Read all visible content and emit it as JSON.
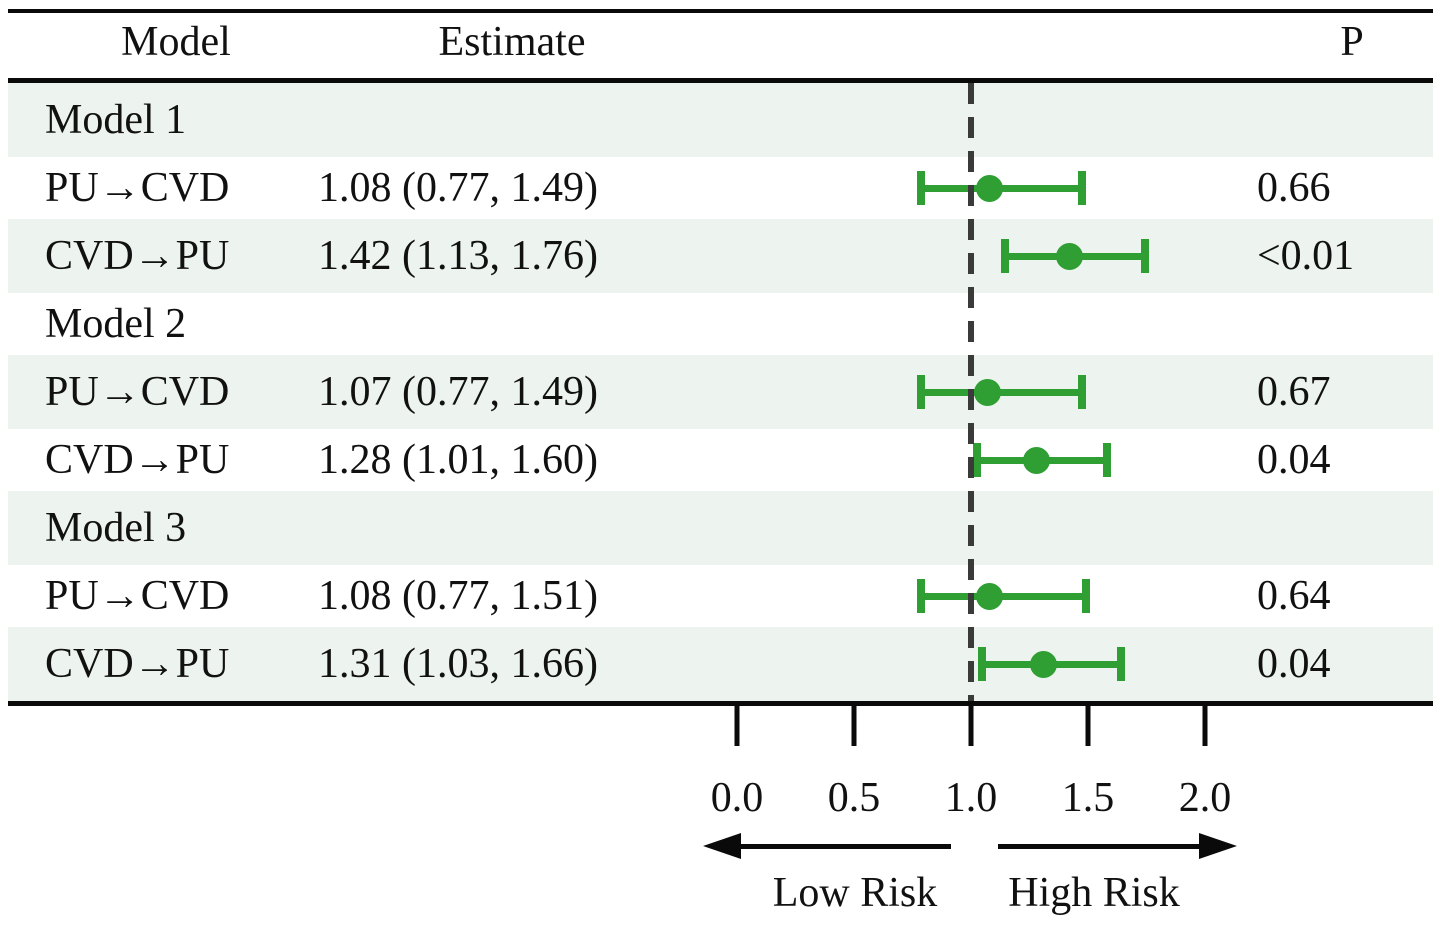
{
  "header": {
    "model": "Model",
    "estimate": "Estimate",
    "p": "P"
  },
  "rows": [
    {
      "kind": "group",
      "label": "Model 1",
      "estimate": "",
      "p": ""
    },
    {
      "kind": "data",
      "label": "PU→CVD",
      "estimate": "1.08 (0.77, 1.49)",
      "est": 1.08,
      "lo": 0.77,
      "hi": 1.49,
      "p": "0.66"
    },
    {
      "kind": "data",
      "label": "CVD→PU",
      "estimate": "1.42 (1.13, 1.76)",
      "est": 1.42,
      "lo": 1.13,
      "hi": 1.76,
      "p": "<0.01"
    },
    {
      "kind": "group",
      "label": "Model 2",
      "estimate": "",
      "p": ""
    },
    {
      "kind": "data",
      "label": "PU→CVD",
      "estimate": "1.07 (0.77, 1.49)",
      "est": 1.07,
      "lo": 0.77,
      "hi": 1.49,
      "p": "0.67"
    },
    {
      "kind": "data",
      "label": "CVD→PU",
      "estimate": "1.28 (1.01, 1.60)",
      "est": 1.28,
      "lo": 1.01,
      "hi": 1.6,
      "p": "0.04"
    },
    {
      "kind": "group",
      "label": "Model 3",
      "estimate": "",
      "p": ""
    },
    {
      "kind": "data",
      "label": "PU→CVD",
      "estimate": "1.08 (0.77, 1.51)",
      "est": 1.08,
      "lo": 0.77,
      "hi": 1.51,
      "p": "0.64"
    },
    {
      "kind": "data",
      "label": "CVD→PU",
      "estimate": "1.31 (1.03, 1.66)",
      "est": 1.31,
      "lo": 1.03,
      "hi": 1.66,
      "p": "0.04"
    }
  ],
  "axis": {
    "ticks": [
      "0.0",
      "0.5",
      "1.0",
      "1.5",
      "2.0"
    ],
    "tick_values": [
      0.0,
      0.5,
      1.0,
      1.5,
      2.0
    ],
    "reference_value": 1.0,
    "low_label": "Low Risk",
    "high_label": "High Risk"
  },
  "colors": {
    "marker_green": "#2f9e33",
    "row_shade": "#edf3ee",
    "reference_dash": "#3a3a3a",
    "rule_black": "#0a0a0a"
  },
  "chart_data": {
    "type": "scatter",
    "subtype": "forest-plot",
    "title": "",
    "xlabel": "",
    "ylabel": "",
    "xlim": [
      0.0,
      2.0
    ],
    "x_ticks": [
      0.0,
      0.5,
      1.0,
      1.5,
      2.0
    ],
    "reference_line": 1.0,
    "grid": false,
    "legend_position": "none",
    "annotations": [
      "Low Risk",
      "High Risk"
    ],
    "series": [
      {
        "group": "Model 1",
        "name": "PU→CVD",
        "estimate": 1.08,
        "ci_low": 0.77,
        "ci_high": 1.49,
        "p": "0.66"
      },
      {
        "group": "Model 1",
        "name": "CVD→PU",
        "estimate": 1.42,
        "ci_low": 1.13,
        "ci_high": 1.76,
        "p": "<0.01"
      },
      {
        "group": "Model 2",
        "name": "PU→CVD",
        "estimate": 1.07,
        "ci_low": 0.77,
        "ci_high": 1.49,
        "p": "0.67"
      },
      {
        "group": "Model 2",
        "name": "CVD→PU",
        "estimate": 1.28,
        "ci_low": 1.01,
        "ci_high": 1.6,
        "p": "0.04"
      },
      {
        "group": "Model 3",
        "name": "PU→CVD",
        "estimate": 1.08,
        "ci_low": 0.77,
        "ci_high": 1.51,
        "p": "0.64"
      },
      {
        "group": "Model 3",
        "name": "CVD→PU",
        "estimate": 1.31,
        "ci_low": 1.03,
        "ci_high": 1.66,
        "p": "0.04"
      }
    ]
  }
}
